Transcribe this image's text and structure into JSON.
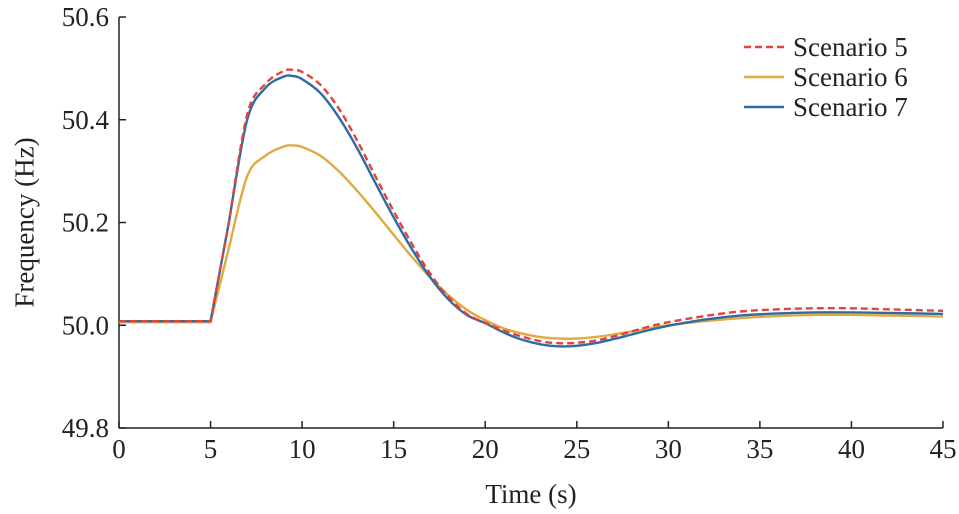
{
  "chart_data": {
    "type": "line",
    "xlabel": "Time (s)",
    "ylabel": "Frequency (Hz)",
    "xlim": [
      0,
      45
    ],
    "ylim": [
      49.8,
      50.6
    ],
    "xticks": [
      0,
      5,
      10,
      15,
      20,
      25,
      30,
      35,
      40,
      45
    ],
    "yticks": [
      49.8,
      50.0,
      50.2,
      50.4,
      50.6
    ],
    "ytick_labels": [
      "49.8",
      "50.0",
      "50.2",
      "50.4",
      "50.6"
    ],
    "grid": false,
    "legend_position": "top-right",
    "series": [
      {
        "name": "Scenario 5",
        "color": "#e0443a",
        "dash": "dashed",
        "x": [
          0,
          5,
          6,
          7,
          8,
          9,
          9.5,
          10,
          11,
          12,
          13,
          14,
          15,
          16,
          17,
          18,
          19,
          20,
          21,
          22,
          23,
          24,
          25,
          26,
          27,
          28,
          29,
          30,
          32,
          34,
          36,
          38,
          40,
          42,
          45
        ],
        "y": [
          50.008,
          50.008,
          50.2,
          50.41,
          50.47,
          50.495,
          50.497,
          50.493,
          50.468,
          50.422,
          50.36,
          50.29,
          50.222,
          50.158,
          50.1,
          50.055,
          50.022,
          50.005,
          49.99,
          49.978,
          49.969,
          49.965,
          49.966,
          49.97,
          49.978,
          49.988,
          49.998,
          50.006,
          50.018,
          50.027,
          50.031,
          50.033,
          50.033,
          50.031,
          50.028
        ]
      },
      {
        "name": "Scenario 6",
        "color": "#e0aa40",
        "dash": "solid",
        "x": [
          0,
          5,
          6,
          7,
          8,
          9,
          9.5,
          10,
          11,
          12,
          13,
          14,
          15,
          16,
          17,
          18,
          19,
          20,
          21,
          22,
          23,
          24,
          25,
          26,
          27,
          28,
          29,
          30,
          32,
          34,
          36,
          38,
          40,
          42,
          45
        ],
        "y": [
          50.006,
          50.006,
          50.15,
          50.29,
          50.33,
          50.348,
          50.35,
          50.347,
          50.33,
          50.3,
          50.262,
          50.22,
          50.176,
          50.133,
          50.093,
          50.058,
          50.03,
          50.01,
          49.994,
          49.984,
          49.977,
          49.974,
          49.974,
          49.977,
          49.982,
          49.988,
          49.994,
          50.0,
          50.008,
          50.014,
          50.018,
          50.02,
          50.02,
          50.019,
          50.017
        ]
      },
      {
        "name": "Scenario 7",
        "color": "#2c6ba6",
        "dash": "solid",
        "x": [
          0,
          5,
          6,
          7,
          8,
          9,
          9.5,
          10,
          11,
          12,
          13,
          14,
          15,
          16,
          17,
          18,
          19,
          20,
          21,
          22,
          23,
          24,
          25,
          26,
          27,
          28,
          29,
          30,
          32,
          34,
          36,
          38,
          40,
          42,
          45
        ],
        "y": [
          50.008,
          50.008,
          50.2,
          50.4,
          50.462,
          50.484,
          50.485,
          50.479,
          50.452,
          50.405,
          50.345,
          50.277,
          50.21,
          50.148,
          50.093,
          50.05,
          50.02,
          50.004,
          49.986,
          49.972,
          49.963,
          49.959,
          49.96,
          49.965,
          49.973,
          49.982,
          49.991,
          49.999,
          50.011,
          50.019,
          50.023,
          50.025,
          50.025,
          50.024,
          50.022
        ]
      }
    ]
  }
}
